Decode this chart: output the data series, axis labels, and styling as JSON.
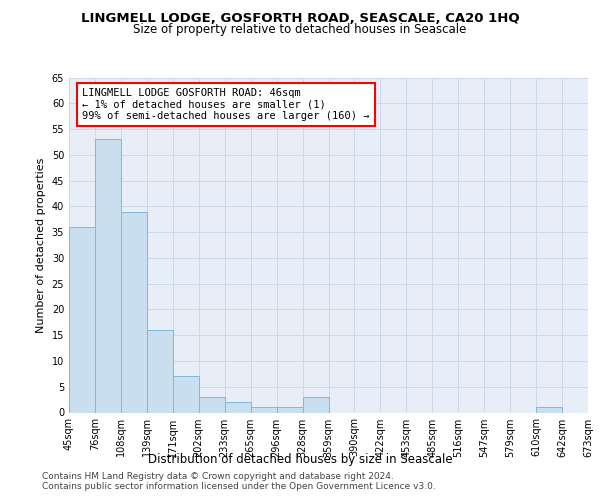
{
  "title": "LINGMELL LODGE, GOSFORTH ROAD, SEASCALE, CA20 1HQ",
  "subtitle": "Size of property relative to detached houses in Seascale",
  "xlabel": "Distribution of detached houses by size in Seascale",
  "ylabel": "Number of detached properties",
  "bar_values": [
    36,
    53,
    39,
    16,
    7,
    3,
    2,
    1,
    1,
    3,
    0,
    0,
    0,
    0,
    0,
    0,
    0,
    0,
    1,
    0
  ],
  "bar_labels": [
    "45sqm",
    "76sqm",
    "108sqm",
    "139sqm",
    "171sqm",
    "202sqm",
    "233sqm",
    "265sqm",
    "296sqm",
    "328sqm",
    "359sqm",
    "390sqm",
    "422sqm",
    "453sqm",
    "485sqm",
    "516sqm",
    "547sqm",
    "579sqm",
    "610sqm",
    "642sqm",
    "673sqm"
  ],
  "bar_color": "#c9dff0",
  "bar_edge_color": "#7fb8d8",
  "annotation_text": "LINGMELL LODGE GOSFORTH ROAD: 46sqm\n← 1% of detached houses are smaller (1)\n99% of semi-detached houses are larger (160) →",
  "annotation_box_color": "white",
  "annotation_box_edge": "red",
  "ylim": [
    0,
    65
  ],
  "yticks": [
    0,
    5,
    10,
    15,
    20,
    25,
    30,
    35,
    40,
    45,
    50,
    55,
    60,
    65
  ],
  "grid_color": "#cdd8e8",
  "background_color": "#e8eef8",
  "footer_line1": "Contains HM Land Registry data © Crown copyright and database right 2024.",
  "footer_line2": "Contains public sector information licensed under the Open Government Licence v3.0.",
  "title_fontsize": 9.5,
  "subtitle_fontsize": 8.5,
  "xlabel_fontsize": 8.5,
  "ylabel_fontsize": 8,
  "tick_fontsize": 7,
  "annotation_fontsize": 7.5,
  "footer_fontsize": 6.5
}
